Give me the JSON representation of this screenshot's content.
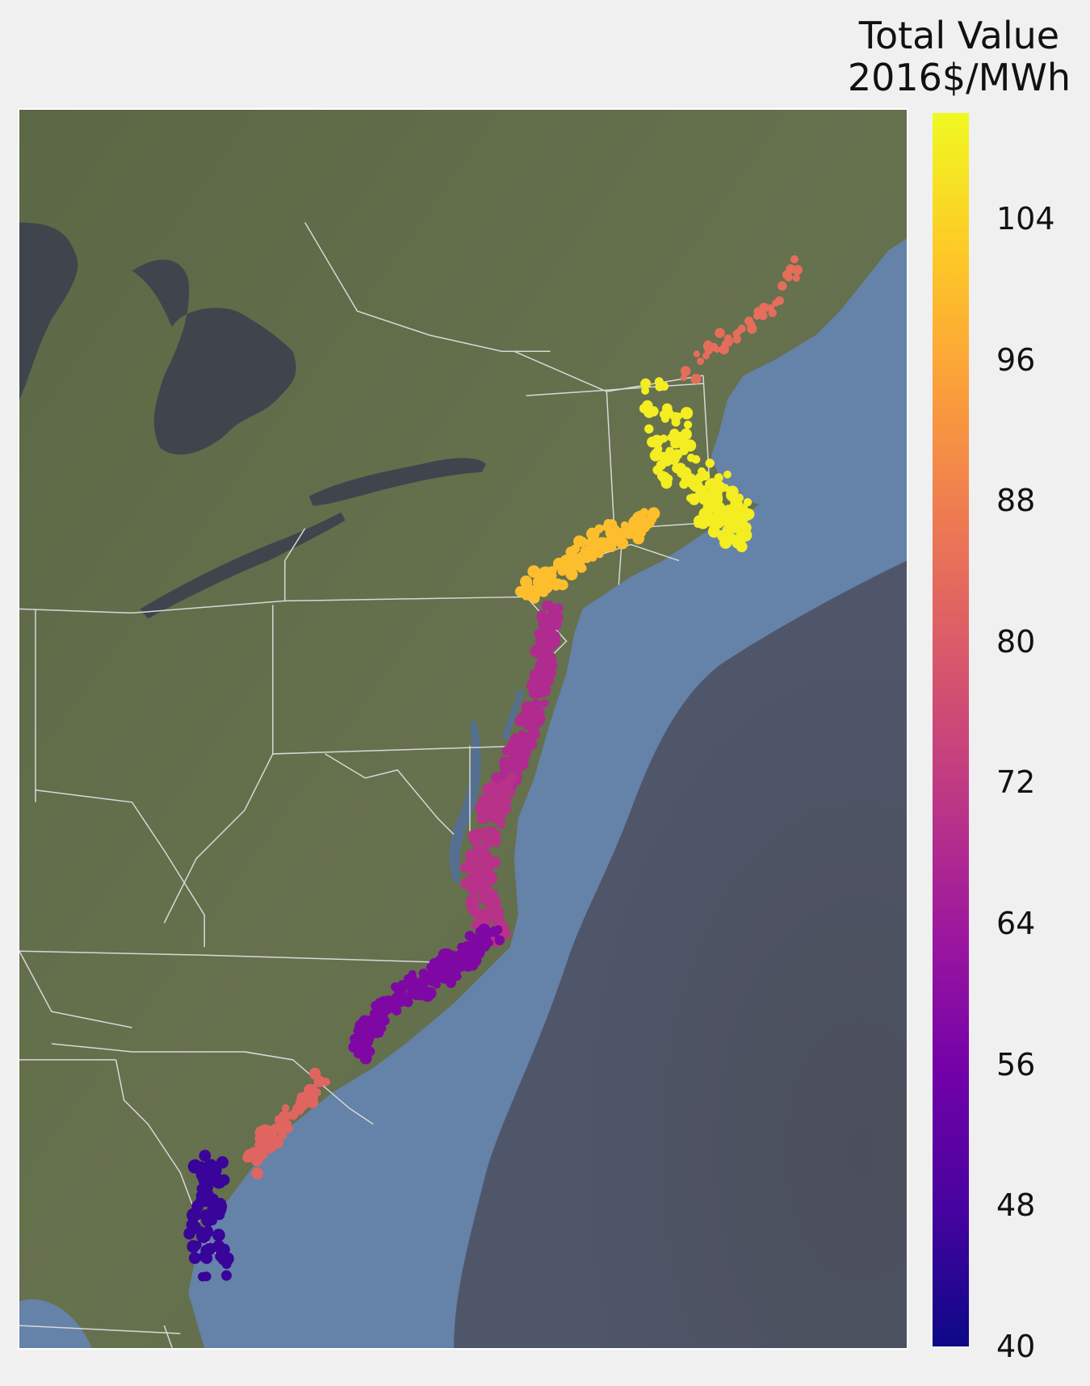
{
  "colorbar": {
    "title_line1": "Total Value",
    "title_line2": "2016$/MWh",
    "min": 40,
    "max": 110,
    "ticks": [
      "40",
      "48",
      "56",
      "64",
      "72",
      "80",
      "88",
      "96",
      "104"
    ],
    "colormap": "plasma",
    "colormap_stops": [
      "#0d0887",
      "#46039f",
      "#7201a8",
      "#9c179e",
      "#bd3786",
      "#d8576b",
      "#ed7953",
      "#fb9f3a",
      "#fdca26",
      "#f0f921"
    ]
  },
  "map": {
    "basemap": "satellite imagery",
    "colors": {
      "land": "#5f6b48",
      "ocean_shelf": "#6582a9",
      "deep_ocean": "#4e5360",
      "lakes": "#40454d",
      "borders": "#d8d8d8"
    },
    "region_clusters": [
      {
        "name": "gulf-of-maine",
        "value": 84
      },
      {
        "name": "cape-cod-nantucket",
        "value": 108
      },
      {
        "name": "long-island-sound",
        "value": 100
      },
      {
        "name": "new-jersey",
        "value": 68
      },
      {
        "name": "delmarva-virginia",
        "value": 70
      },
      {
        "name": "outer-banks",
        "value": 58
      },
      {
        "name": "north-carolina-south",
        "value": 58
      },
      {
        "name": "south-carolina",
        "value": 82
      },
      {
        "name": "georgia",
        "value": 46
      }
    ]
  }
}
